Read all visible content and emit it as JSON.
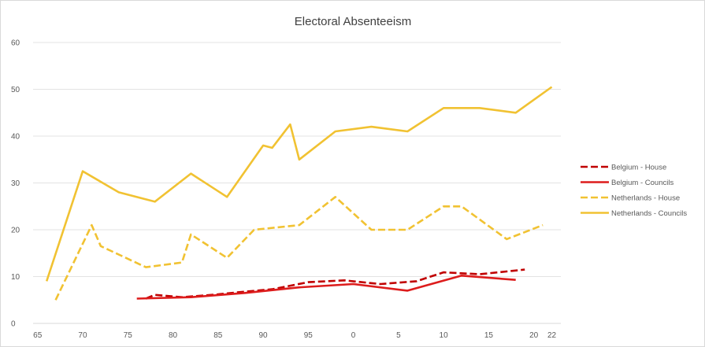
{
  "chart_data": {
    "type": "line",
    "title": "Electoral Absenteeism",
    "xlabel": "",
    "ylabel": "",
    "ylim": [
      0,
      60
    ],
    "y_ticks": [
      "0",
      "10",
      "20",
      "30",
      "40",
      "50",
      "60"
    ],
    "x_ticks": [
      "65",
      "70",
      "75",
      "80",
      "85",
      "90",
      "95",
      "0",
      "5",
      "10",
      "15",
      "20",
      "22"
    ],
    "grid": "horizontal",
    "legend_position": "right",
    "series": [
      {
        "name": "Belgium - House",
        "color": "#c00000",
        "style": "dashed",
        "x": [
          1977,
          1978,
          1981,
          1985,
          1987,
          1991,
          1995,
          1999,
          2003,
          2007,
          2010,
          2014,
          2019
        ],
        "y": [
          5.3,
          6.1,
          5.6,
          6.2,
          6.6,
          7.3,
          8.8,
          9.2,
          8.4,
          9.0,
          10.9,
          10.5,
          11.5
        ]
      },
      {
        "name": "Belgium - Councils",
        "color": "#dd1c1c",
        "style": "solid",
        "x": [
          1976,
          1982,
          1988,
          1994,
          2000,
          2006,
          2012,
          2018
        ],
        "y": [
          5.3,
          5.6,
          6.5,
          7.7,
          8.4,
          7.0,
          10.2,
          9.3
        ]
      },
      {
        "name": "Netherlands - House",
        "color": "#f1c232",
        "style": "dashed",
        "x": [
          1967,
          1971,
          1972,
          1977,
          1981,
          1982,
          1986,
          1989,
          1994,
          1998,
          2002,
          2006,
          2010,
          2012,
          2017,
          2021
        ],
        "y": [
          5,
          21,
          16.5,
          12,
          13,
          19,
          14,
          20,
          21,
          27,
          20,
          20,
          25,
          25,
          18,
          21
        ]
      },
      {
        "name": "Netherlands - Councils",
        "color": "#f1c232",
        "style": "solid",
        "x": [
          1966,
          1970,
          1974,
          1978,
          1982,
          1986,
          1990,
          1991,
          1993,
          1994,
          1998,
          2002,
          2006,
          2010,
          2014,
          2018,
          2022
        ],
        "y": [
          9,
          32.5,
          28,
          26,
          32,
          27,
          38,
          37.5,
          42.5,
          35,
          41,
          42,
          41,
          46,
          46,
          45,
          50.5
        ]
      }
    ]
  }
}
